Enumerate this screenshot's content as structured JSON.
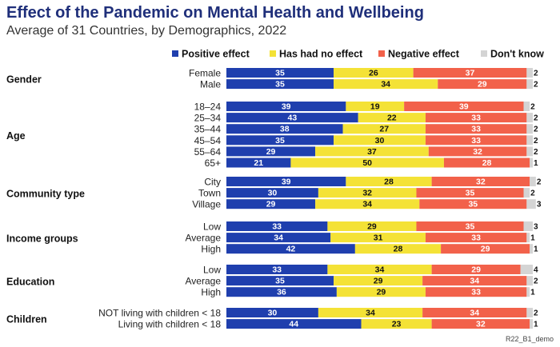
{
  "title": "Effect of the Pandemic on Mental Health and Wellbeing",
  "subtitle": "Average of 31 Countries, by Demographics, 2022",
  "footnote": "R22_B1_demo",
  "chart_data": {
    "type": "bar",
    "orientation": "horizontal",
    "stacked": true,
    "percent_total": 100,
    "legend_position": "top",
    "series": [
      {
        "name": "Positive effect",
        "color": "#1f3fae"
      },
      {
        "name": "Has had no effect",
        "color": "#f4e236"
      },
      {
        "name": "Negative effect",
        "color": "#f2614a"
      },
      {
        "name": "Don't know",
        "color": "#d4d4d4"
      }
    ],
    "groups": [
      {
        "name": "Gender",
        "rows": [
          {
            "label": "Female",
            "values": [
              35,
              26,
              37,
              2
            ]
          },
          {
            "label": "Male",
            "values": [
              35,
              34,
              29,
              2
            ]
          }
        ]
      },
      {
        "name": "Age",
        "rows": [
          {
            "label": "18–24",
            "values": [
              39,
              19,
              39,
              2
            ]
          },
          {
            "label": "25–34",
            "values": [
              43,
              22,
              33,
              2
            ]
          },
          {
            "label": "35–44",
            "values": [
              38,
              27,
              33,
              2
            ]
          },
          {
            "label": "45–54",
            "values": [
              35,
              30,
              33,
              2
            ]
          },
          {
            "label": "55–64",
            "values": [
              29,
              37,
              32,
              2
            ]
          },
          {
            "label": "65+",
            "values": [
              21,
              50,
              28,
              1
            ]
          }
        ]
      },
      {
        "name": "Community type",
        "rows": [
          {
            "label": "City",
            "values": [
              39,
              28,
              32,
              2
            ]
          },
          {
            "label": "Town",
            "values": [
              30,
              32,
              35,
              2
            ]
          },
          {
            "label": "Village",
            "values": [
              29,
              34,
              35,
              3
            ]
          }
        ]
      },
      {
        "name": "Income groups",
        "rows": [
          {
            "label": "Low",
            "values": [
              33,
              29,
              35,
              3
            ]
          },
          {
            "label": "Average",
            "values": [
              34,
              31,
              33,
              1
            ]
          },
          {
            "label": "High",
            "values": [
              42,
              28,
              29,
              1
            ]
          }
        ]
      },
      {
        "name": "Education",
        "rows": [
          {
            "label": "Low",
            "values": [
              33,
              34,
              29,
              4
            ]
          },
          {
            "label": "Average",
            "values": [
              35,
              29,
              34,
              2
            ]
          },
          {
            "label": "High",
            "values": [
              36,
              29,
              33,
              1
            ]
          }
        ]
      },
      {
        "name": "Children",
        "rows": [
          {
            "label": "NOT living with children < 18",
            "values": [
              30,
              34,
              34,
              2
            ]
          },
          {
            "label": "Living with children < 18",
            "values": [
              44,
              23,
              32,
              1
            ]
          }
        ]
      }
    ]
  }
}
